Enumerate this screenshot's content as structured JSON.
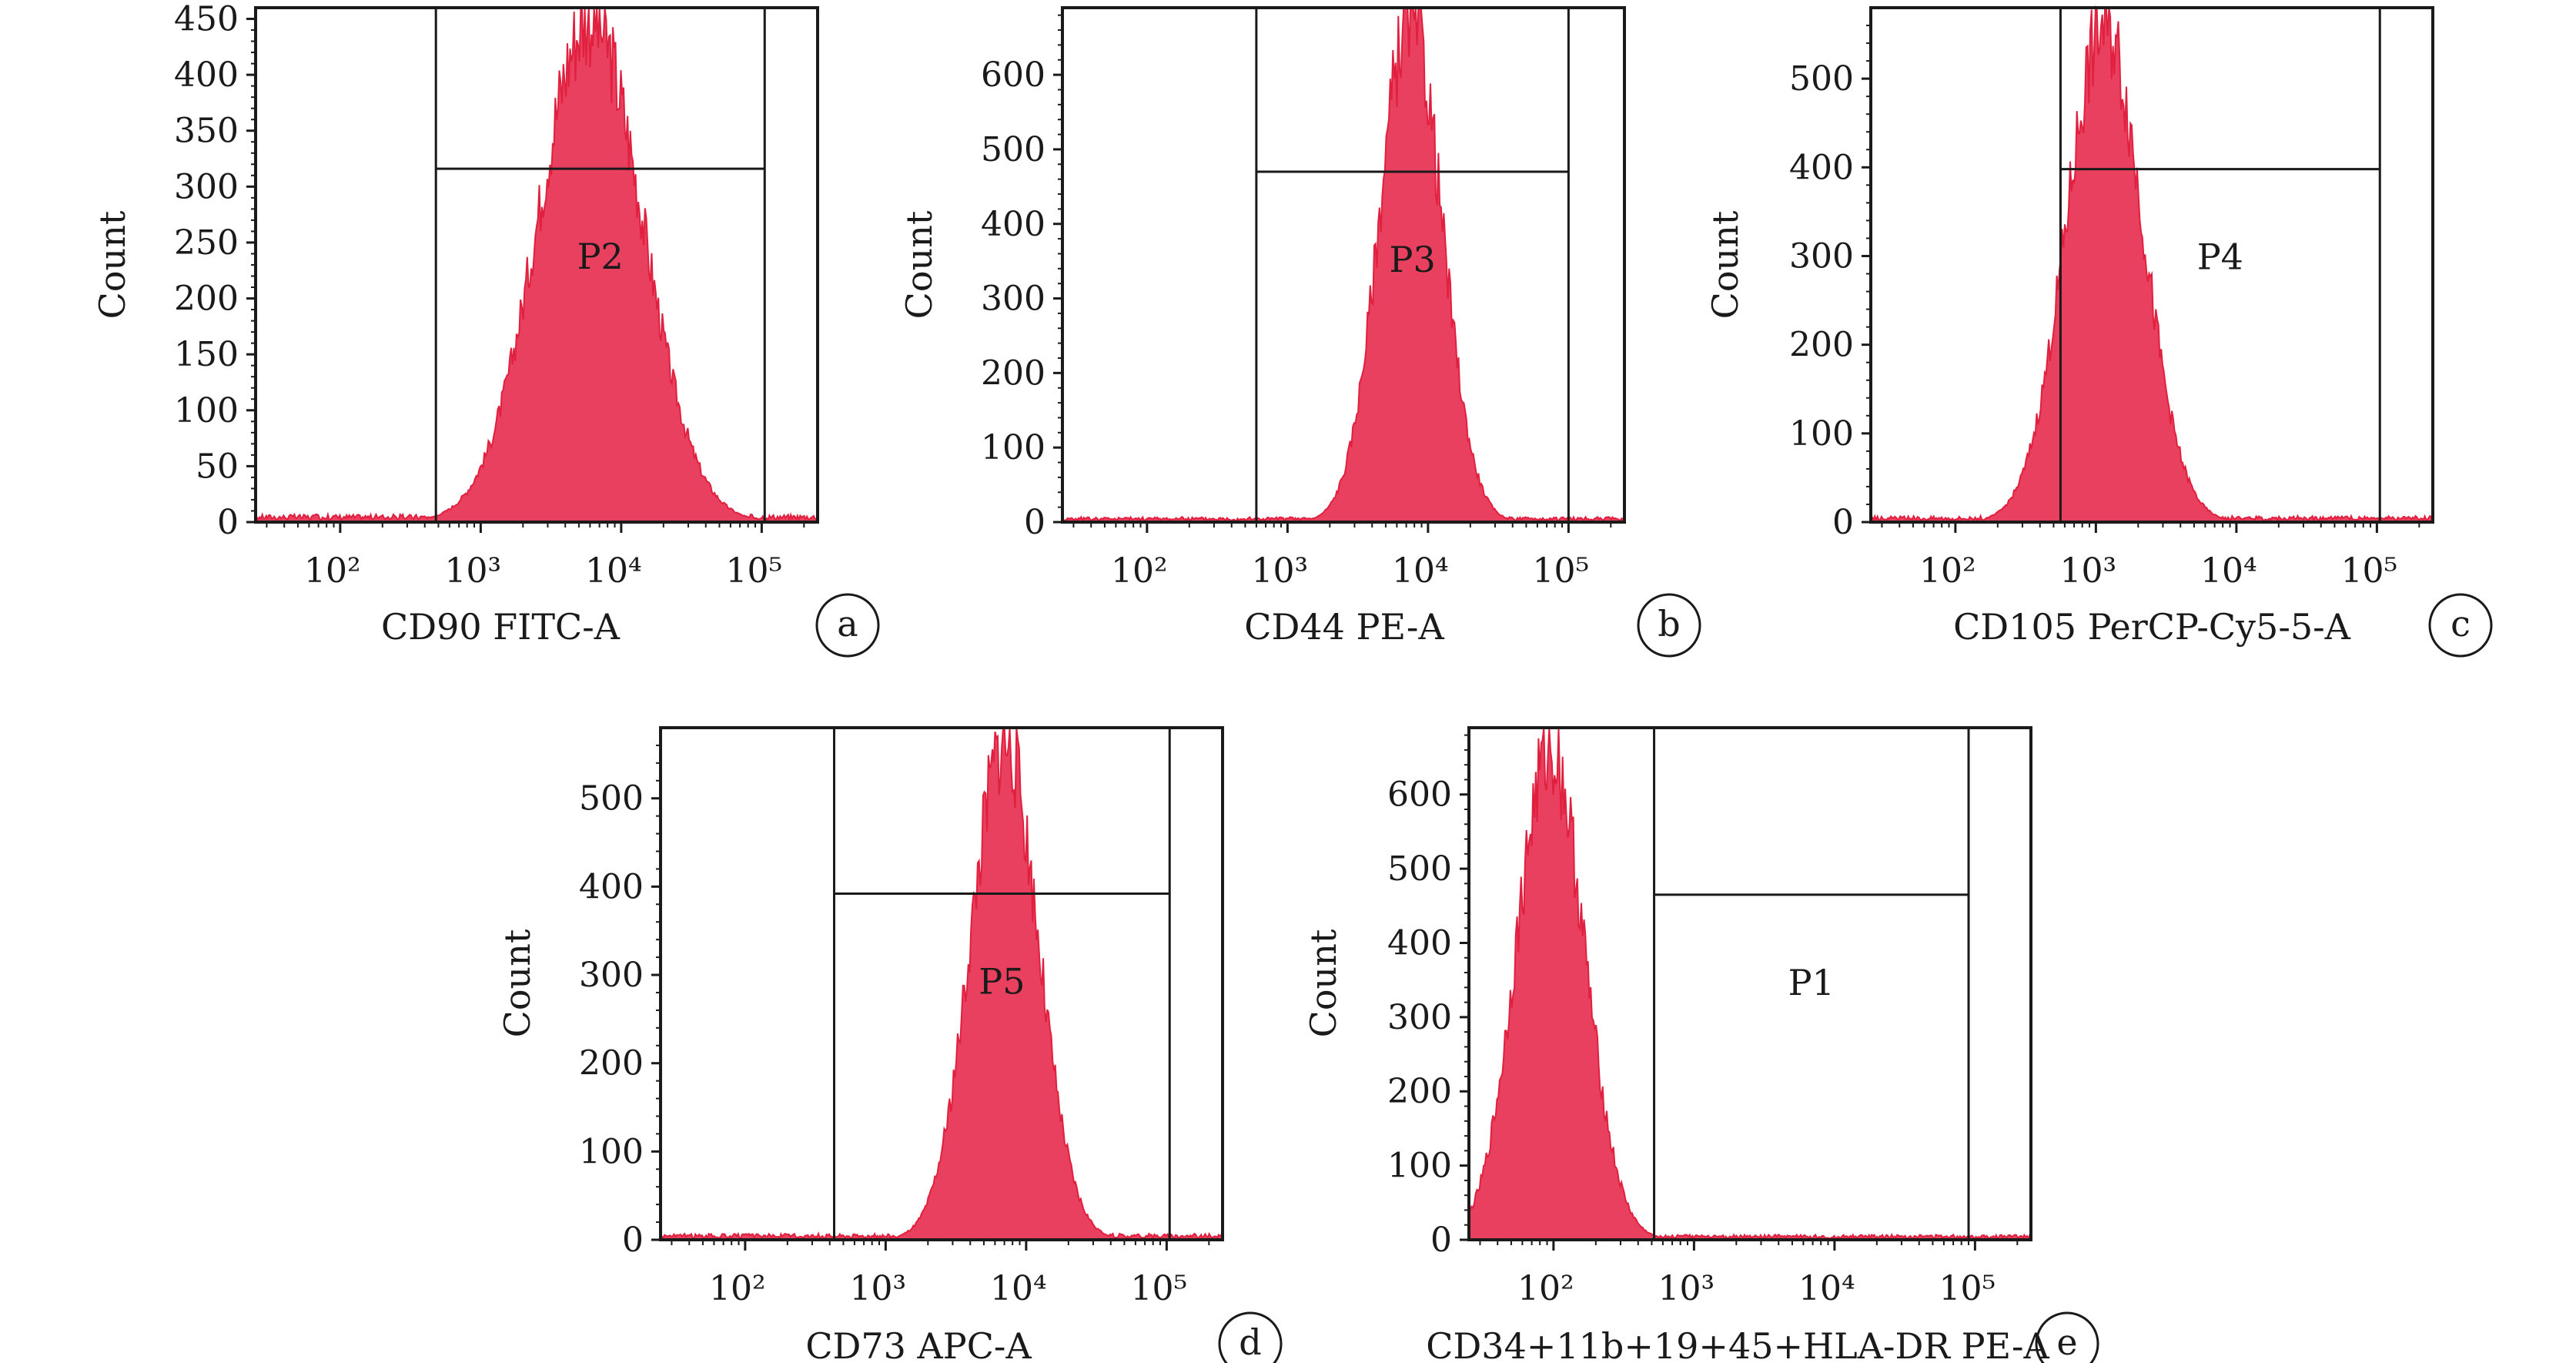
{
  "chart_data": [
    {
      "type": "histogram",
      "panel": "a",
      "xlabel": "CD90 FITC-A",
      "ylabel": "Count",
      "x_scale": "log",
      "xlim": [
        25,
        250000
      ],
      "ylim": [
        0,
        460
      ],
      "y_ticks": [
        0,
        50,
        100,
        150,
        200,
        250,
        300,
        350,
        400,
        450
      ],
      "x_ticks": [
        {
          "value": 100,
          "label": "10²"
        },
        {
          "value": 1000,
          "label": "10³"
        },
        {
          "value": 10000,
          "label": "10⁴"
        },
        {
          "value": 100000,
          "label": "10⁵"
        }
      ],
      "series": [
        {
          "peak_x": 6000,
          "peak_count": 450,
          "log_spread": 0.37
        }
      ],
      "gate": {
        "name": "P2",
        "x_from": 480,
        "x_to": 105000,
        "count_level": 316
      },
      "color": "#e8405e"
    },
    {
      "type": "histogram",
      "panel": "b",
      "xlabel": "CD44 PE-A",
      "ylabel": "Count",
      "x_scale": "log",
      "xlim": [
        25,
        250000
      ],
      "ylim": [
        0,
        690
      ],
      "y_ticks": [
        0,
        100,
        200,
        300,
        400,
        500,
        600
      ],
      "x_ticks": [
        {
          "value": 100,
          "label": "10²"
        },
        {
          "value": 1000,
          "label": "10³"
        },
        {
          "value": 10000,
          "label": "10⁴"
        },
        {
          "value": 100000,
          "label": "10⁵"
        }
      ],
      "series": [
        {
          "peak_x": 7500,
          "peak_count": 680,
          "log_spread": 0.22
        }
      ],
      "gate": {
        "name": "P3",
        "x_from": 600,
        "x_to": 100000,
        "count_level": 470
      },
      "color": "#e8405e"
    },
    {
      "type": "histogram",
      "panel": "c",
      "xlabel": "CD105 PerCP-Cy5-5-A",
      "ylabel": "Count",
      "x_scale": "log",
      "xlim": [
        25,
        250000
      ],
      "ylim": [
        0,
        580
      ],
      "y_ticks": [
        0,
        100,
        200,
        300,
        400,
        500
      ],
      "x_ticks": [
        {
          "value": 100,
          "label": "10²"
        },
        {
          "value": 1000,
          "label": "10³"
        },
        {
          "value": 10000,
          "label": "10⁴"
        },
        {
          "value": 100000,
          "label": "10⁵"
        }
      ],
      "series": [
        {
          "peak_x": 1150,
          "peak_count": 560,
          "log_spread": 0.27
        }
      ],
      "gate": {
        "name": "P4",
        "x_from": 560,
        "x_to": 105000,
        "count_level": 398
      },
      "color": "#e8405e"
    },
    {
      "type": "histogram",
      "panel": "d",
      "xlabel": "CD73 APC-A",
      "ylabel": "Count",
      "x_scale": "log",
      "xlim": [
        25,
        250000
      ],
      "ylim": [
        0,
        580
      ],
      "y_ticks": [
        0,
        100,
        200,
        300,
        400,
        500
      ],
      "x_ticks": [
        {
          "value": 100,
          "label": "10²"
        },
        {
          "value": 1000,
          "label": "10³"
        },
        {
          "value": 10000,
          "label": "10⁴"
        },
        {
          "value": 100000,
          "label": "10⁵"
        }
      ],
      "series": [
        {
          "peak_x": 7000,
          "peak_count": 565,
          "log_spread": 0.24
        }
      ],
      "gate": {
        "name": "P5",
        "x_from": 430,
        "x_to": 105000,
        "count_level": 392
      },
      "color": "#e8405e"
    },
    {
      "type": "histogram",
      "panel": "e",
      "xlabel": "CD34+11b+19+45+HLA-DR PE-A",
      "ylabel": "Count",
      "x_scale": "log",
      "xlim": [
        25,
        250000
      ],
      "ylim": [
        0,
        690
      ],
      "y_ticks": [
        0,
        100,
        200,
        300,
        400,
        500,
        600
      ],
      "x_ticks": [
        {
          "value": 100,
          "label": "10²"
        },
        {
          "value": 1000,
          "label": "10³"
        },
        {
          "value": 10000,
          "label": "10⁴"
        },
        {
          "value": 100000,
          "label": "10⁵"
        }
      ],
      "series": [
        {
          "peak_x": 95,
          "peak_count": 660,
          "log_spread": 0.24
        }
      ],
      "gate": {
        "name": "P1",
        "x_from": 520,
        "x_to": 90000,
        "count_level": 465
      },
      "color": "#e8405e"
    }
  ]
}
